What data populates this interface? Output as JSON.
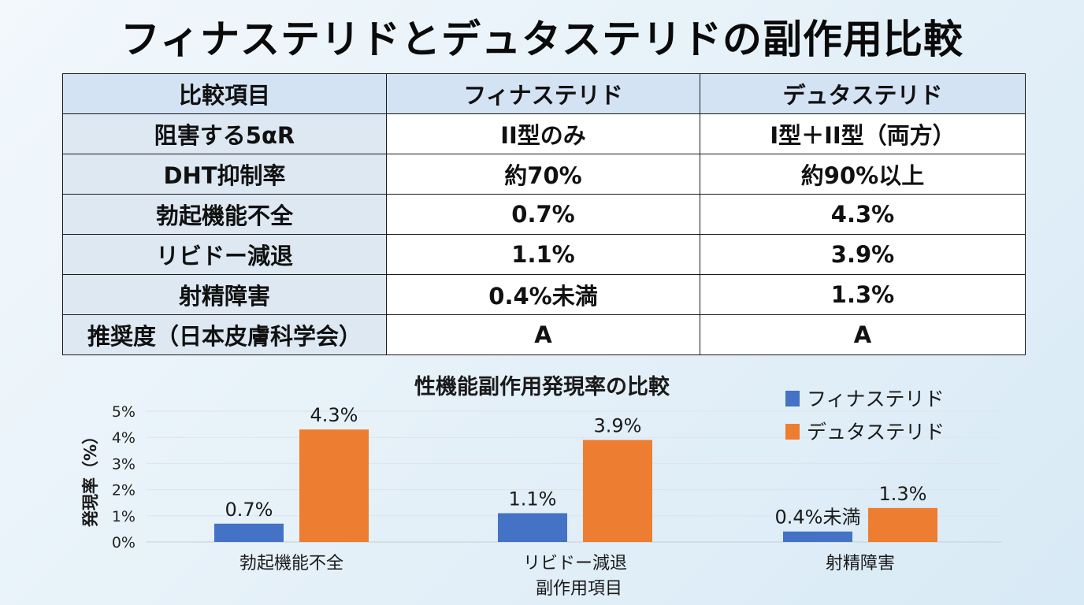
{
  "title": "フィナステリドとデュタステリドの副作用比較",
  "table": {
    "headers": [
      "比較項目",
      "フィナステリド",
      "デュタステリド"
    ],
    "rows": [
      {
        "label": "阻害する5αR",
        "finasteride": "II型のみ",
        "dutasteride": "I型＋II型（両方）"
      },
      {
        "label": "DHT抑制率",
        "finasteride": "約70%",
        "dutasteride": "約90%以上"
      },
      {
        "label": "勃起機能不全",
        "finasteride": "0.7%",
        "dutasteride": "4.3%"
      },
      {
        "label": "リビドー減退",
        "finasteride": "1.1%",
        "dutasteride": "3.9%"
      },
      {
        "label": "射精障害",
        "finasteride": "0.4%未満",
        "dutasteride": "1.3%"
      },
      {
        "label": "推奨度（日本皮膚科学会）",
        "finasteride": "A",
        "dutasteride": "A"
      }
    ]
  },
  "chart_data": {
    "type": "bar",
    "title": "性機能副作用発現率の比較",
    "xlabel": "副作用項目",
    "ylabel": "発現率（%）",
    "categories": [
      "勃起機能不全",
      "リビドー減退",
      "射精障害"
    ],
    "series": [
      {
        "name": "フィナステリド",
        "color": "#4472c4",
        "values": [
          0.7,
          1.1,
          0.4
        ],
        "labels": [
          "0.7%",
          "1.1%",
          "0.4%未満"
        ]
      },
      {
        "name": "デュタステリド",
        "color": "#ed7d31",
        "values": [
          4.3,
          3.9,
          1.3
        ],
        "labels": [
          "4.3%",
          "3.9%",
          "1.3%"
        ]
      }
    ],
    "yticks": [
      "0%",
      "1%",
      "2%",
      "3%",
      "4%",
      "5%"
    ],
    "ylim": [
      0,
      5
    ],
    "grid": true,
    "legend": "top-right"
  }
}
